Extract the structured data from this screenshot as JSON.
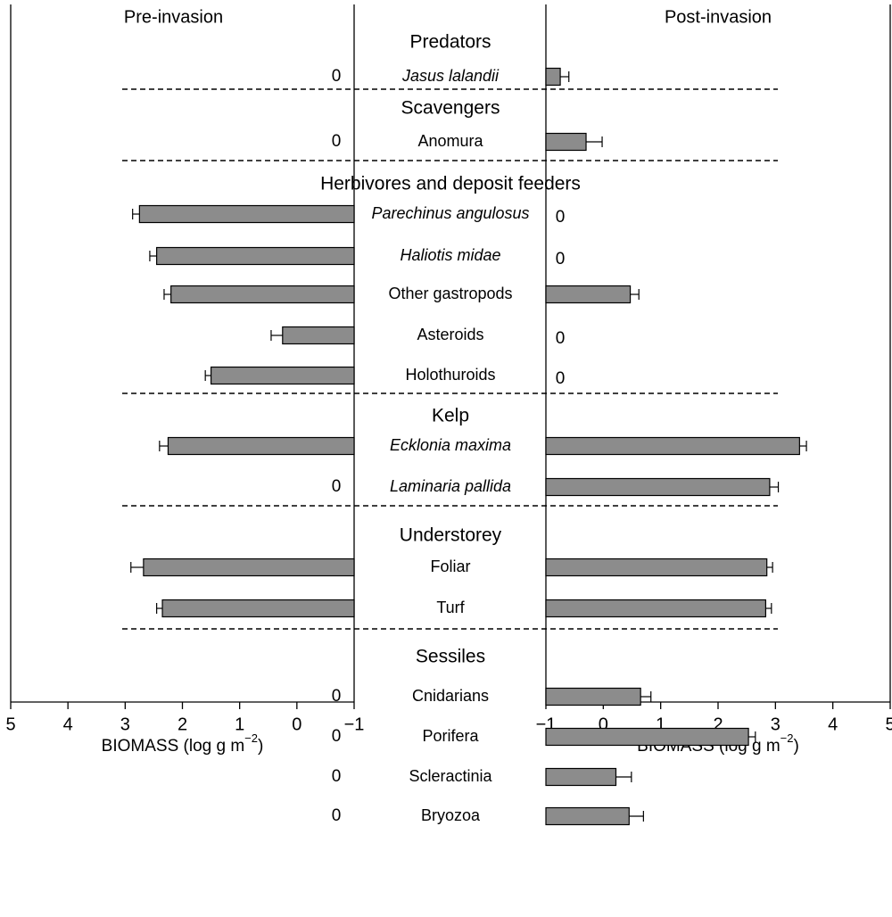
{
  "chart_data": {
    "type": "bar",
    "orientation": "horizontal",
    "bar_color": "#8c8c8c",
    "panels": {
      "pre": {
        "title": "Pre-invasion",
        "xlabel_text": "BIOMASS (log g m",
        "xlabel_exponent": "−2",
        "xlabel_close": ")",
        "xlim": [
          -1,
          5
        ],
        "xticks": [
          5,
          4,
          3,
          2,
          1,
          0,
          -1
        ],
        "xtick_labels": [
          "5",
          "4",
          "3",
          "2",
          "1",
          "0",
          "−1"
        ],
        "direction": "reversed"
      },
      "post": {
        "title": "Post-invasion",
        "xlabel_text": "BIOMASS (log g m",
        "xlabel_exponent": "−2",
        "xlabel_close": ")",
        "xlim": [
          -1,
          5
        ],
        "xticks": [
          -1,
          0,
          1,
          2,
          3,
          4,
          5
        ],
        "xtick_labels": [
          "−1",
          "0",
          "1",
          "2",
          "3",
          "4",
          "5"
        ],
        "direction": "normal"
      }
    },
    "groups": [
      {
        "name": "Predators",
        "items": [
          {
            "label": "Jasus lalandii",
            "italic": true,
            "pre": null,
            "pre_err": null,
            "pre_zero_label": "0",
            "post": -0.75,
            "post_err": 0.15,
            "post_zero_label": ""
          }
        ]
      },
      {
        "name": "Scavengers",
        "items": [
          {
            "label": "Anomura",
            "italic": false,
            "pre": null,
            "pre_err": null,
            "pre_zero_label": "0",
            "post": -0.3,
            "post_err": 0.28,
            "post_zero_label": ""
          }
        ]
      },
      {
        "name": "Herbivores and deposit feeders",
        "items": [
          {
            "label": "Parechinus angulosus",
            "italic": true,
            "pre": 2.75,
            "pre_err": 0.12,
            "pre_zero_label": "",
            "post": null,
            "post_err": null,
            "post_zero_label": "0"
          },
          {
            "label": "Haliotis midae",
            "italic": true,
            "pre": 2.45,
            "pre_err": 0.12,
            "pre_zero_label": "",
            "post": null,
            "post_err": null,
            "post_zero_label": "0"
          },
          {
            "label": "Other gastropods",
            "italic": false,
            "pre": 2.2,
            "pre_err": 0.12,
            "pre_zero_label": "",
            "post": 0.47,
            "post_err": 0.15,
            "post_zero_label": ""
          },
          {
            "label": "Asteroids",
            "italic": false,
            "pre": 0.25,
            "pre_err": 0.2,
            "pre_zero_label": "",
            "post": null,
            "post_err": null,
            "post_zero_label": "0"
          },
          {
            "label": "Holothuroids",
            "italic": false,
            "pre": 1.5,
            "pre_err": 0.1,
            "pre_zero_label": "",
            "post": null,
            "post_err": null,
            "post_zero_label": "0"
          }
        ]
      },
      {
        "name": "Kelp",
        "items": [
          {
            "label": "Ecklonia maxima",
            "italic": true,
            "pre": 2.25,
            "pre_err": 0.15,
            "pre_zero_label": "",
            "post": 3.42,
            "post_err": 0.12,
            "post_zero_label": ""
          },
          {
            "label": "Laminaria pallida",
            "italic": true,
            "pre": null,
            "pre_err": null,
            "pre_zero_label": "0",
            "post": 2.9,
            "post_err": 0.15,
            "post_zero_label": ""
          }
        ]
      },
      {
        "name": "Understorey",
        "items": [
          {
            "label": "Foliar",
            "italic": false,
            "pre": 2.68,
            "pre_err": 0.22,
            "pre_zero_label": "",
            "post": 2.85,
            "post_err": 0.1,
            "post_zero_label": ""
          },
          {
            "label": "Turf",
            "italic": false,
            "pre": 2.35,
            "pre_err": 0.1,
            "pre_zero_label": "",
            "post": 2.83,
            "post_err": 0.1,
            "post_zero_label": ""
          }
        ]
      },
      {
        "name": "Sessiles",
        "items": [
          {
            "label": "Cnidarians",
            "italic": false,
            "pre": null,
            "pre_err": null,
            "pre_zero_label": "0",
            "post": 0.65,
            "post_err": 0.18,
            "post_zero_label": ""
          },
          {
            "label": "Porifera",
            "italic": false,
            "pre": null,
            "pre_err": null,
            "pre_zero_label": "0",
            "post": 2.53,
            "post_err": 0.12,
            "post_zero_label": ""
          },
          {
            "label": "Scleractinia",
            "italic": false,
            "pre": null,
            "pre_err": null,
            "pre_zero_label": "0",
            "post": 0.22,
            "post_err": 0.27,
            "post_zero_label": ""
          },
          {
            "label": "Bryozoa",
            "italic": false,
            "pre": null,
            "pre_err": null,
            "pre_zero_label": "0",
            "post": 0.45,
            "post_err": 0.25,
            "post_zero_label": ""
          }
        ]
      }
    ]
  }
}
